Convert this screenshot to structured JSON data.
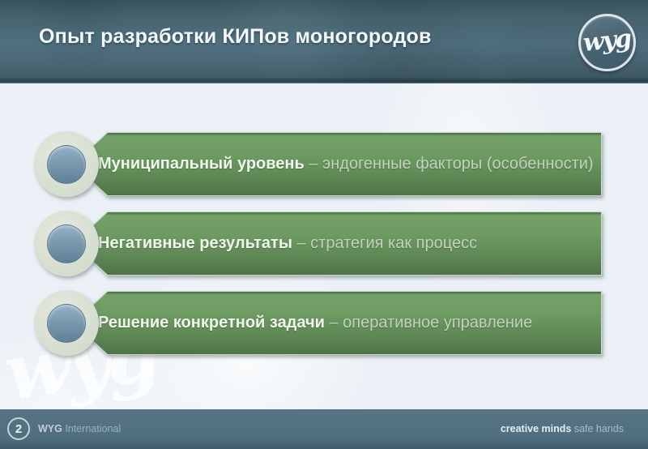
{
  "header": {
    "title": "Опыт разработки КИПов моногородов",
    "logo_text": "wyg"
  },
  "list": {
    "items": [
      {
        "bold": "Муниципальный уровень",
        "rest": " – эндогенные факторы (особенности)"
      },
      {
        "bold": "Негативные результаты",
        "rest": " – стратегия как процесс"
      },
      {
        "bold": "Решение конкретной задачи",
        "rest": " – оперативное управление"
      }
    ]
  },
  "watermark": {
    "text": "wyg"
  },
  "footer": {
    "page_number": "2",
    "brand_bold": "WYG",
    "brand_rest": " International",
    "tagline_bold": "creative minds",
    "tagline_rest": " safe hands"
  },
  "colors": {
    "header_teal": "#4a6673",
    "banner_green_top": "#73a167",
    "banner_green_bottom": "#4e7446",
    "bullet_ring": "#d8e0d2",
    "bullet_inner_blue": "#7e9cb2",
    "body_background": "#eaf0f6",
    "footer_slate": "#507080"
  }
}
